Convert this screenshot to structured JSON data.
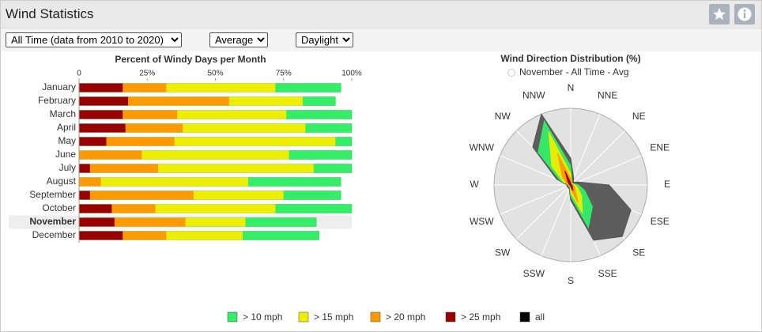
{
  "header": {
    "title": "Wind Statistics"
  },
  "controls": {
    "period": "All Time (data from 2010 to 2020)",
    "statistic": "Average",
    "time": "Daylight"
  },
  "chart_data": [
    {
      "type": "bar",
      "orientation": "horizontal",
      "title": "Percent of Windy Days per Month",
      "categories": [
        "January",
        "February",
        "March",
        "April",
        "May",
        "June",
        "July",
        "August",
        "September",
        "October",
        "November",
        "December"
      ],
      "selected": "November",
      "series": [
        {
          "name": "> 10 mph",
          "color": "#33ee66",
          "values": [
            96,
            94,
            100,
            100,
            100,
            100,
            100,
            96,
            96,
            100,
            87,
            88
          ]
        },
        {
          "name": "> 15 mph",
          "color": "#eeee00",
          "values": [
            72,
            82,
            76,
            83,
            94,
            77,
            86,
            62,
            75,
            72,
            61,
            60
          ]
        },
        {
          "name": "> 20 mph",
          "color": "#ff9900",
          "values": [
            32,
            55,
            36,
            38,
            35,
            23,
            29,
            8,
            42,
            28,
            39,
            32
          ]
        },
        {
          "name": "> 25 mph",
          "color": "#990000",
          "values": [
            16,
            18,
            16,
            17,
            10,
            0,
            4,
            0,
            4,
            12,
            13,
            16
          ]
        }
      ],
      "xlim": [
        0,
        100
      ],
      "xticks": [
        0,
        {
          "value": 25,
          "label": "25%"
        },
        {
          "value": 50,
          "label": "50%"
        },
        {
          "value": 75,
          "label": "75%"
        },
        {
          "value": 100,
          "label": "100%"
        }
      ]
    },
    {
      "type": "radar",
      "title": "Wind Direction Distribution (%)",
      "subtitle": "November - All Time - Avg",
      "categories": [
        "N",
        "NNE",
        "NE",
        "ENE",
        "E",
        "ESE",
        "SE",
        "SSE",
        "S",
        "SSW",
        "SW",
        "WSW",
        "W",
        "WNW",
        "NW",
        "NNW"
      ],
      "rlim": [
        0,
        100
      ],
      "series": [
        {
          "name": "all",
          "color": "#555555",
          "values": [
            35,
            10,
            5,
            10,
            50,
            85,
            95,
            78,
            20,
            5,
            5,
            5,
            5,
            20,
            70,
            100
          ]
        },
        {
          "name": "> 10 mph",
          "color": "#33ee66",
          "values": [
            25,
            4,
            3,
            4,
            10,
            20,
            40,
            60,
            15,
            3,
            3,
            3,
            3,
            15,
            60,
            90
          ]
        },
        {
          "name": "> 15 mph",
          "color": "#eeee00",
          "values": [
            15,
            3,
            2,
            3,
            6,
            10,
            20,
            40,
            10,
            2,
            2,
            2,
            2,
            10,
            35,
            75
          ]
        },
        {
          "name": "> 20 mph",
          "color": "#ff9900",
          "values": [
            8,
            2,
            1,
            2,
            3,
            5,
            8,
            25,
            5,
            1,
            1,
            1,
            1,
            6,
            15,
            45
          ]
        },
        {
          "name": "> 25 mph",
          "color": "#990000",
          "values": [
            3,
            1,
            1,
            1,
            1,
            2,
            3,
            8,
            2,
            1,
            1,
            1,
            1,
            2,
            5,
            20
          ]
        }
      ]
    }
  ]
}
